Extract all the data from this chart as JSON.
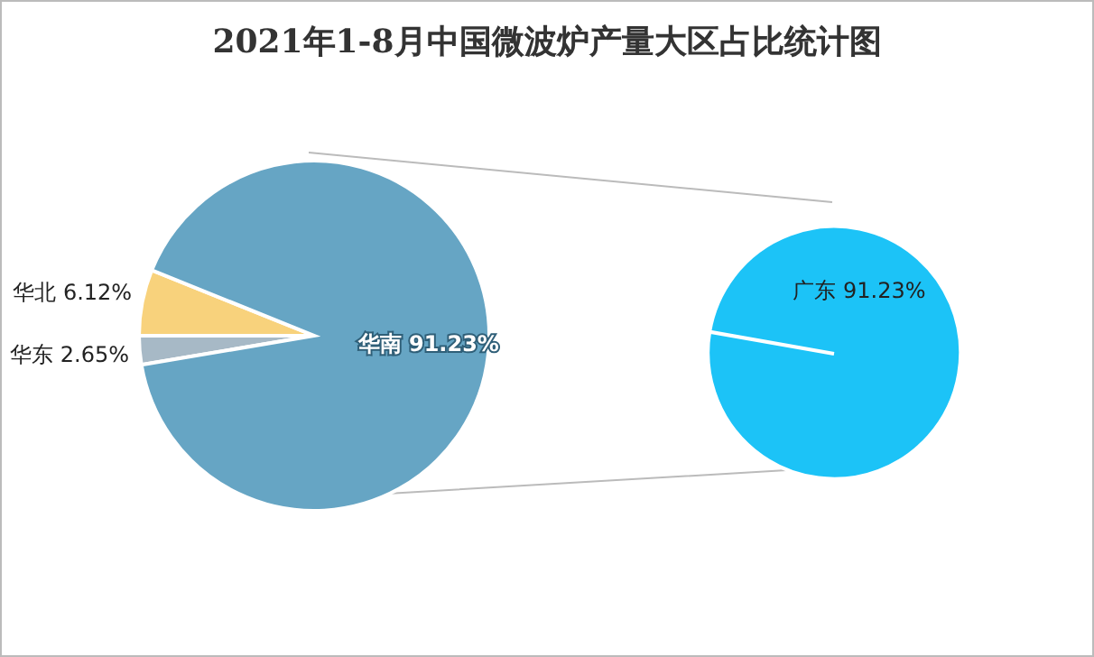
{
  "chart_data": [
    {
      "type": "pie",
      "title": "2021年1-8月中国微波炉产量大区占比统计图",
      "categories": [
        "华北",
        "华东",
        "华南"
      ],
      "values": [
        6.12,
        2.65,
        91.23
      ],
      "colors": [
        "#f8d27c",
        "#a7b9c6",
        "#66a5c4"
      ],
      "value_labels": [
        "6.12%",
        "2.65%",
        "91.23%"
      ]
    },
    {
      "type": "pie",
      "categories": [
        "广东"
      ],
      "values": [
        91.23
      ],
      "colors": [
        "#1cc3f7"
      ],
      "value_labels": [
        "91.23%"
      ]
    }
  ]
}
